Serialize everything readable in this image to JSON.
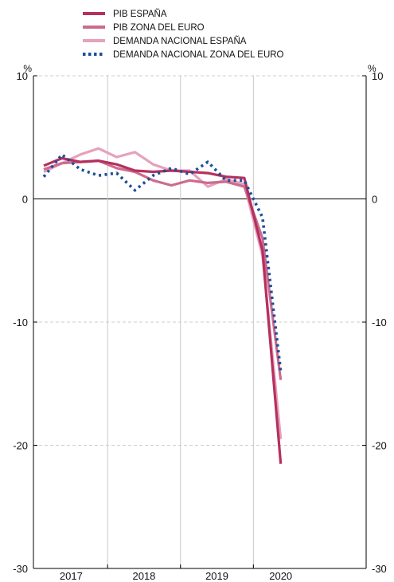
{
  "chart_data": {
    "type": "line",
    "title": "",
    "xlabel": "",
    "ylabel": "",
    "unit_left": "%",
    "unit_right": "%",
    "ylim": [
      -30,
      10
    ],
    "yticks": [
      10,
      0,
      -10,
      -20,
      -30
    ],
    "ytick_labels": [
      "10",
      "0",
      "-10",
      "-20",
      "-30"
    ],
    "x_groups": [
      {
        "label": "2017",
        "quarters": 4
      },
      {
        "label": "2018",
        "quarters": 4
      },
      {
        "label": "2019",
        "quarters": 4
      },
      {
        "label": "2020",
        "quarters": 3
      }
    ],
    "x": [
      "2017 T1",
      "2017 T2",
      "2017 T3",
      "2017 T4",
      "2018 T1",
      "2018 T2",
      "2018 T3",
      "2018 T4",
      "2019 T1",
      "2019 T2",
      "2019 T3",
      "2019 T4",
      "2020 T1",
      "2020 T2",
      "2020 T3"
    ],
    "grid": {
      "horizontal": "dashed",
      "vertical_year_separators": true
    },
    "legend_position": "top-center",
    "series": [
      {
        "name": "PIB ESPAÑA",
        "color": "#b5305e",
        "style": "solid",
        "values": [
          null,
          null,
          null,
          null,
          null,
          null,
          null,
          null,
          null,
          null,
          null,
          null,
          null,
          null,
          null
        ]
      },
      {
        "name": "PIB ZONA DEL EURO",
        "color": "#cd6b8f",
        "style": "solid",
        "values": [
          null,
          null,
          null,
          null,
          null,
          null,
          null,
          null,
          null,
          null,
          null,
          null,
          null,
          null,
          null
        ]
      },
      {
        "name": "DEMANDA NACIONAL ESPAÑA",
        "color": "#e6a1bd",
        "style": "solid",
        "values": [
          null,
          null,
          null,
          null,
          null,
          null,
          null,
          null,
          null,
          null,
          null,
          null,
          null,
          null,
          null
        ]
      },
      {
        "name": "DEMANDA NACIONAL ZONA DEL EURO",
        "color": "#1c4e98",
        "style": "dotted",
        "values": [
          null,
          null,
          null,
          null,
          null,
          null,
          null,
          null,
          null,
          null,
          null,
          null,
          null,
          null,
          null
        ]
      }
    ]
  }
}
